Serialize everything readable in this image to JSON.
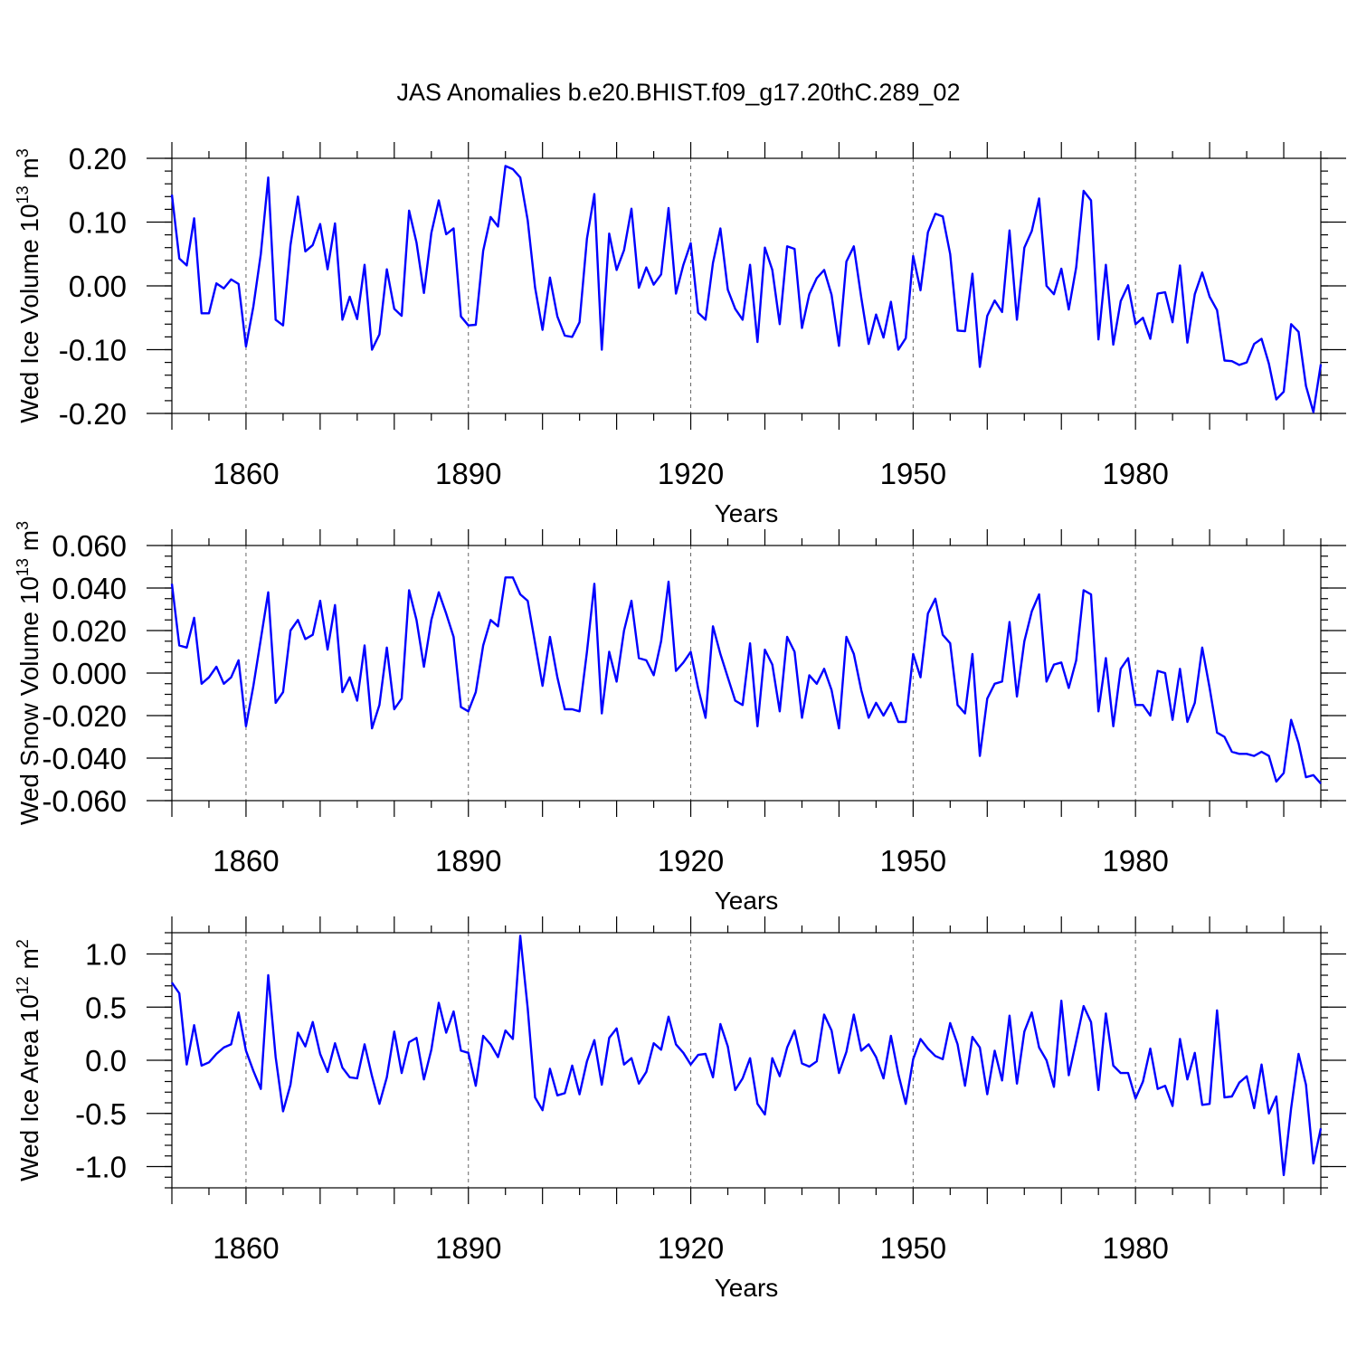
{
  "title": "JAS Anomalies b.e20.BHIST.f09_g17.20thC.289_02",
  "line_color": "#0000ff",
  "chart_data": [
    {
      "type": "line",
      "ylabel_main": "Wed Ice Volume 10",
      "ylabel_exp": "13",
      "ylabel_unit": " m",
      "ylabel_unit_exp": "3",
      "xlabel": "Years",
      "xlim": [
        1850,
        2005
      ],
      "ylim": [
        -0.2,
        0.2
      ],
      "xticks": [
        1860,
        1890,
        1920,
        1950,
        1980
      ],
      "yticks": [
        -0.2,
        -0.1,
        0.0,
        0.1,
        0.2
      ],
      "ytick_labels": [
        "-0.20",
        "-0.10",
        "0.00",
        "0.10",
        "0.20"
      ],
      "ytick_minor_step": 0.02,
      "x_start": 1850,
      "values": [
        0.143,
        0.043,
        0.032,
        0.106,
        -0.043,
        -0.043,
        0.004,
        -0.004,
        0.01,
        0.003,
        -0.095,
        -0.032,
        0.05,
        0.17,
        -0.053,
        -0.062,
        0.064,
        0.14,
        0.054,
        0.064,
        0.097,
        0.026,
        0.098,
        -0.053,
        -0.017,
        -0.052,
        0.033,
        -0.1,
        -0.076,
        0.026,
        -0.036,
        -0.047,
        0.118,
        0.068,
        -0.011,
        0.083,
        0.134,
        0.081,
        0.09,
        -0.048,
        -0.062,
        -0.061,
        0.055,
        0.108,
        0.093,
        0.188,
        0.183,
        0.17,
        0.103,
        -0.003,
        -0.069,
        0.013,
        -0.048,
        -0.078,
        -0.08,
        -0.057,
        0.074,
        0.144,
        -0.1,
        0.082,
        0.025,
        0.056,
        0.121,
        -0.003,
        0.029,
        0.002,
        0.018,
        0.122,
        -0.012,
        0.033,
        0.067,
        -0.042,
        -0.053,
        0.036,
        0.09,
        -0.006,
        -0.036,
        -0.053,
        0.033,
        -0.088,
        0.06,
        0.025,
        -0.06,
        0.062,
        0.058,
        -0.066,
        -0.013,
        0.012,
        0.025,
        -0.014,
        -0.094,
        0.038,
        0.062,
        -0.018,
        -0.091,
        -0.045,
        -0.081,
        -0.025,
        -0.1,
        -0.082,
        0.047,
        -0.007,
        0.084,
        0.113,
        0.109,
        0.05,
        -0.07,
        -0.071,
        0.019,
        -0.127,
        -0.047,
        -0.023,
        -0.041,
        0.087,
        -0.053,
        0.06,
        0.086,
        0.137,
        0.0,
        -0.013,
        0.027,
        -0.037,
        0.029,
        0.149,
        0.134,
        -0.084,
        0.033,
        -0.092,
        -0.024,
        0.001,
        -0.06,
        -0.05,
        -0.083,
        -0.012,
        -0.01,
        -0.057,
        0.032,
        -0.089,
        -0.013,
        0.021,
        -0.017,
        -0.038,
        -0.117,
        -0.118,
        -0.124,
        -0.12,
        -0.091,
        -0.083,
        -0.122,
        -0.178,
        -0.166,
        -0.06,
        -0.072,
        -0.157,
        -0.198,
        -0.123
      ]
    },
    {
      "type": "line",
      "ylabel_main": "Wed Snow Volume 10",
      "ylabel_exp": "13",
      "ylabel_unit": " m",
      "ylabel_unit_exp": "3",
      "xlabel": "Years",
      "xlim": [
        1850,
        2005
      ],
      "ylim": [
        -0.06,
        0.06
      ],
      "xticks": [
        1860,
        1890,
        1920,
        1950,
        1980
      ],
      "yticks": [
        -0.06,
        -0.04,
        -0.02,
        0.0,
        0.02,
        0.04,
        0.06
      ],
      "ytick_labels": [
        "-0.060",
        "-0.040",
        "-0.020",
        "0.000",
        "0.020",
        "0.040",
        "0.060"
      ],
      "ytick_minor_step": 0.005,
      "x_start": 1850,
      "values": [
        0.042,
        0.013,
        0.012,
        0.026,
        -0.005,
        -0.002,
        0.003,
        -0.005,
        -0.002,
        0.006,
        -0.025,
        -0.006,
        0.016,
        0.038,
        -0.014,
        -0.009,
        0.02,
        0.025,
        0.016,
        0.018,
        0.034,
        0.011,
        0.032,
        -0.009,
        -0.002,
        -0.013,
        0.013,
        -0.026,
        -0.015,
        0.012,
        -0.017,
        -0.012,
        0.039,
        0.025,
        0.003,
        0.025,
        0.038,
        0.028,
        0.017,
        -0.016,
        -0.018,
        -0.009,
        0.013,
        0.025,
        0.022,
        0.045,
        0.045,
        0.037,
        0.034,
        0.014,
        -0.006,
        0.017,
        -0.002,
        -0.017,
        -0.017,
        -0.018,
        0.01,
        0.042,
        -0.019,
        0.01,
        -0.004,
        0.02,
        0.034,
        0.007,
        0.006,
        -0.001,
        0.015,
        0.043,
        0.001,
        0.005,
        0.01,
        -0.007,
        -0.021,
        0.022,
        0.009,
        -0.002,
        -0.013,
        -0.015,
        0.014,
        -0.025,
        0.011,
        0.004,
        -0.018,
        0.017,
        0.01,
        -0.021,
        -0.001,
        -0.005,
        0.002,
        -0.008,
        -0.026,
        0.017,
        0.009,
        -0.008,
        -0.021,
        -0.014,
        -0.02,
        -0.014,
        -0.023,
        -0.023,
        0.009,
        -0.002,
        0.028,
        0.035,
        0.018,
        0.014,
        -0.015,
        -0.019,
        0.009,
        -0.039,
        -0.012,
        -0.005,
        -0.004,
        0.024,
        -0.011,
        0.015,
        0.029,
        0.037,
        -0.004,
        0.004,
        0.005,
        -0.007,
        0.006,
        0.039,
        0.037,
        -0.018,
        0.007,
        -0.025,
        0.002,
        0.007,
        -0.015,
        -0.015,
        -0.02,
        0.001,
        0.0,
        -0.022,
        0.002,
        -0.023,
        -0.014,
        0.012,
        -0.007,
        -0.028,
        -0.03,
        -0.037,
        -0.038,
        -0.038,
        -0.039,
        -0.037,
        -0.039,
        -0.051,
        -0.047,
        -0.022,
        -0.033,
        -0.049,
        -0.048,
        -0.052
      ]
    },
    {
      "type": "line",
      "ylabel_main": "Wed Ice Area 10",
      "ylabel_exp": "12",
      "ylabel_unit": " m",
      "ylabel_unit_exp": "2",
      "xlabel": "Years",
      "xlim": [
        1850,
        2005
      ],
      "ylim": [
        -1.2,
        1.2
      ],
      "xticks": [
        1860,
        1890,
        1920,
        1950,
        1980
      ],
      "yticks": [
        -1.0,
        -0.5,
        0.0,
        0.5,
        1.0
      ],
      "ytick_labels": [
        "-1.0",
        "-0.5",
        "0.0",
        "0.5",
        "1.0"
      ],
      "ytick_minor_step": 0.1,
      "x_start": 1850,
      "values": [
        0.73,
        0.63,
        -0.04,
        0.33,
        -0.05,
        -0.02,
        0.06,
        0.12,
        0.15,
        0.45,
        0.09,
        -0.1,
        -0.27,
        0.8,
        0.03,
        -0.48,
        -0.23,
        0.26,
        0.13,
        0.36,
        0.06,
        -0.11,
        0.16,
        -0.07,
        -0.16,
        -0.17,
        0.15,
        -0.15,
        -0.41,
        -0.16,
        0.27,
        -0.12,
        0.17,
        0.21,
        -0.18,
        0.1,
        0.54,
        0.26,
        0.46,
        0.09,
        0.07,
        -0.24,
        0.23,
        0.15,
        0.03,
        0.28,
        0.2,
        1.17,
        0.49,
        -0.35,
        -0.47,
        -0.08,
        -0.33,
        -0.31,
        -0.05,
        -0.32,
        -0.01,
        0.19,
        -0.23,
        0.21,
        0.3,
        -0.04,
        0.02,
        -0.22,
        -0.11,
        0.16,
        0.1,
        0.41,
        0.15,
        0.07,
        -0.04,
        0.05,
        0.06,
        -0.16,
        0.34,
        0.13,
        -0.28,
        -0.17,
        0.02,
        -0.41,
        -0.51,
        0.02,
        -0.15,
        0.12,
        0.28,
        -0.03,
        -0.06,
        -0.01,
        0.43,
        0.28,
        -0.12,
        0.08,
        0.43,
        0.09,
        0.15,
        0.03,
        -0.17,
        0.23,
        -0.13,
        -0.41,
        0.01,
        0.2,
        0.11,
        0.04,
        0.01,
        0.35,
        0.15,
        -0.24,
        0.22,
        0.12,
        -0.32,
        0.09,
        -0.19,
        0.42,
        -0.22,
        0.27,
        0.45,
        0.12,
        0.0,
        -0.25,
        0.56,
        -0.14,
        0.18,
        0.51,
        0.36,
        -0.28,
        0.44,
        -0.05,
        -0.12,
        -0.12,
        -0.36,
        -0.2,
        0.11,
        -0.27,
        -0.24,
        -0.43,
        0.2,
        -0.18,
        0.07,
        -0.42,
        -0.41,
        0.47,
        -0.35,
        -0.34,
        -0.21,
        -0.15,
        -0.45,
        -0.04,
        -0.5,
        -0.34,
        -1.08,
        -0.45,
        0.06,
        -0.23,
        -0.97,
        -0.64
      ]
    }
  ]
}
